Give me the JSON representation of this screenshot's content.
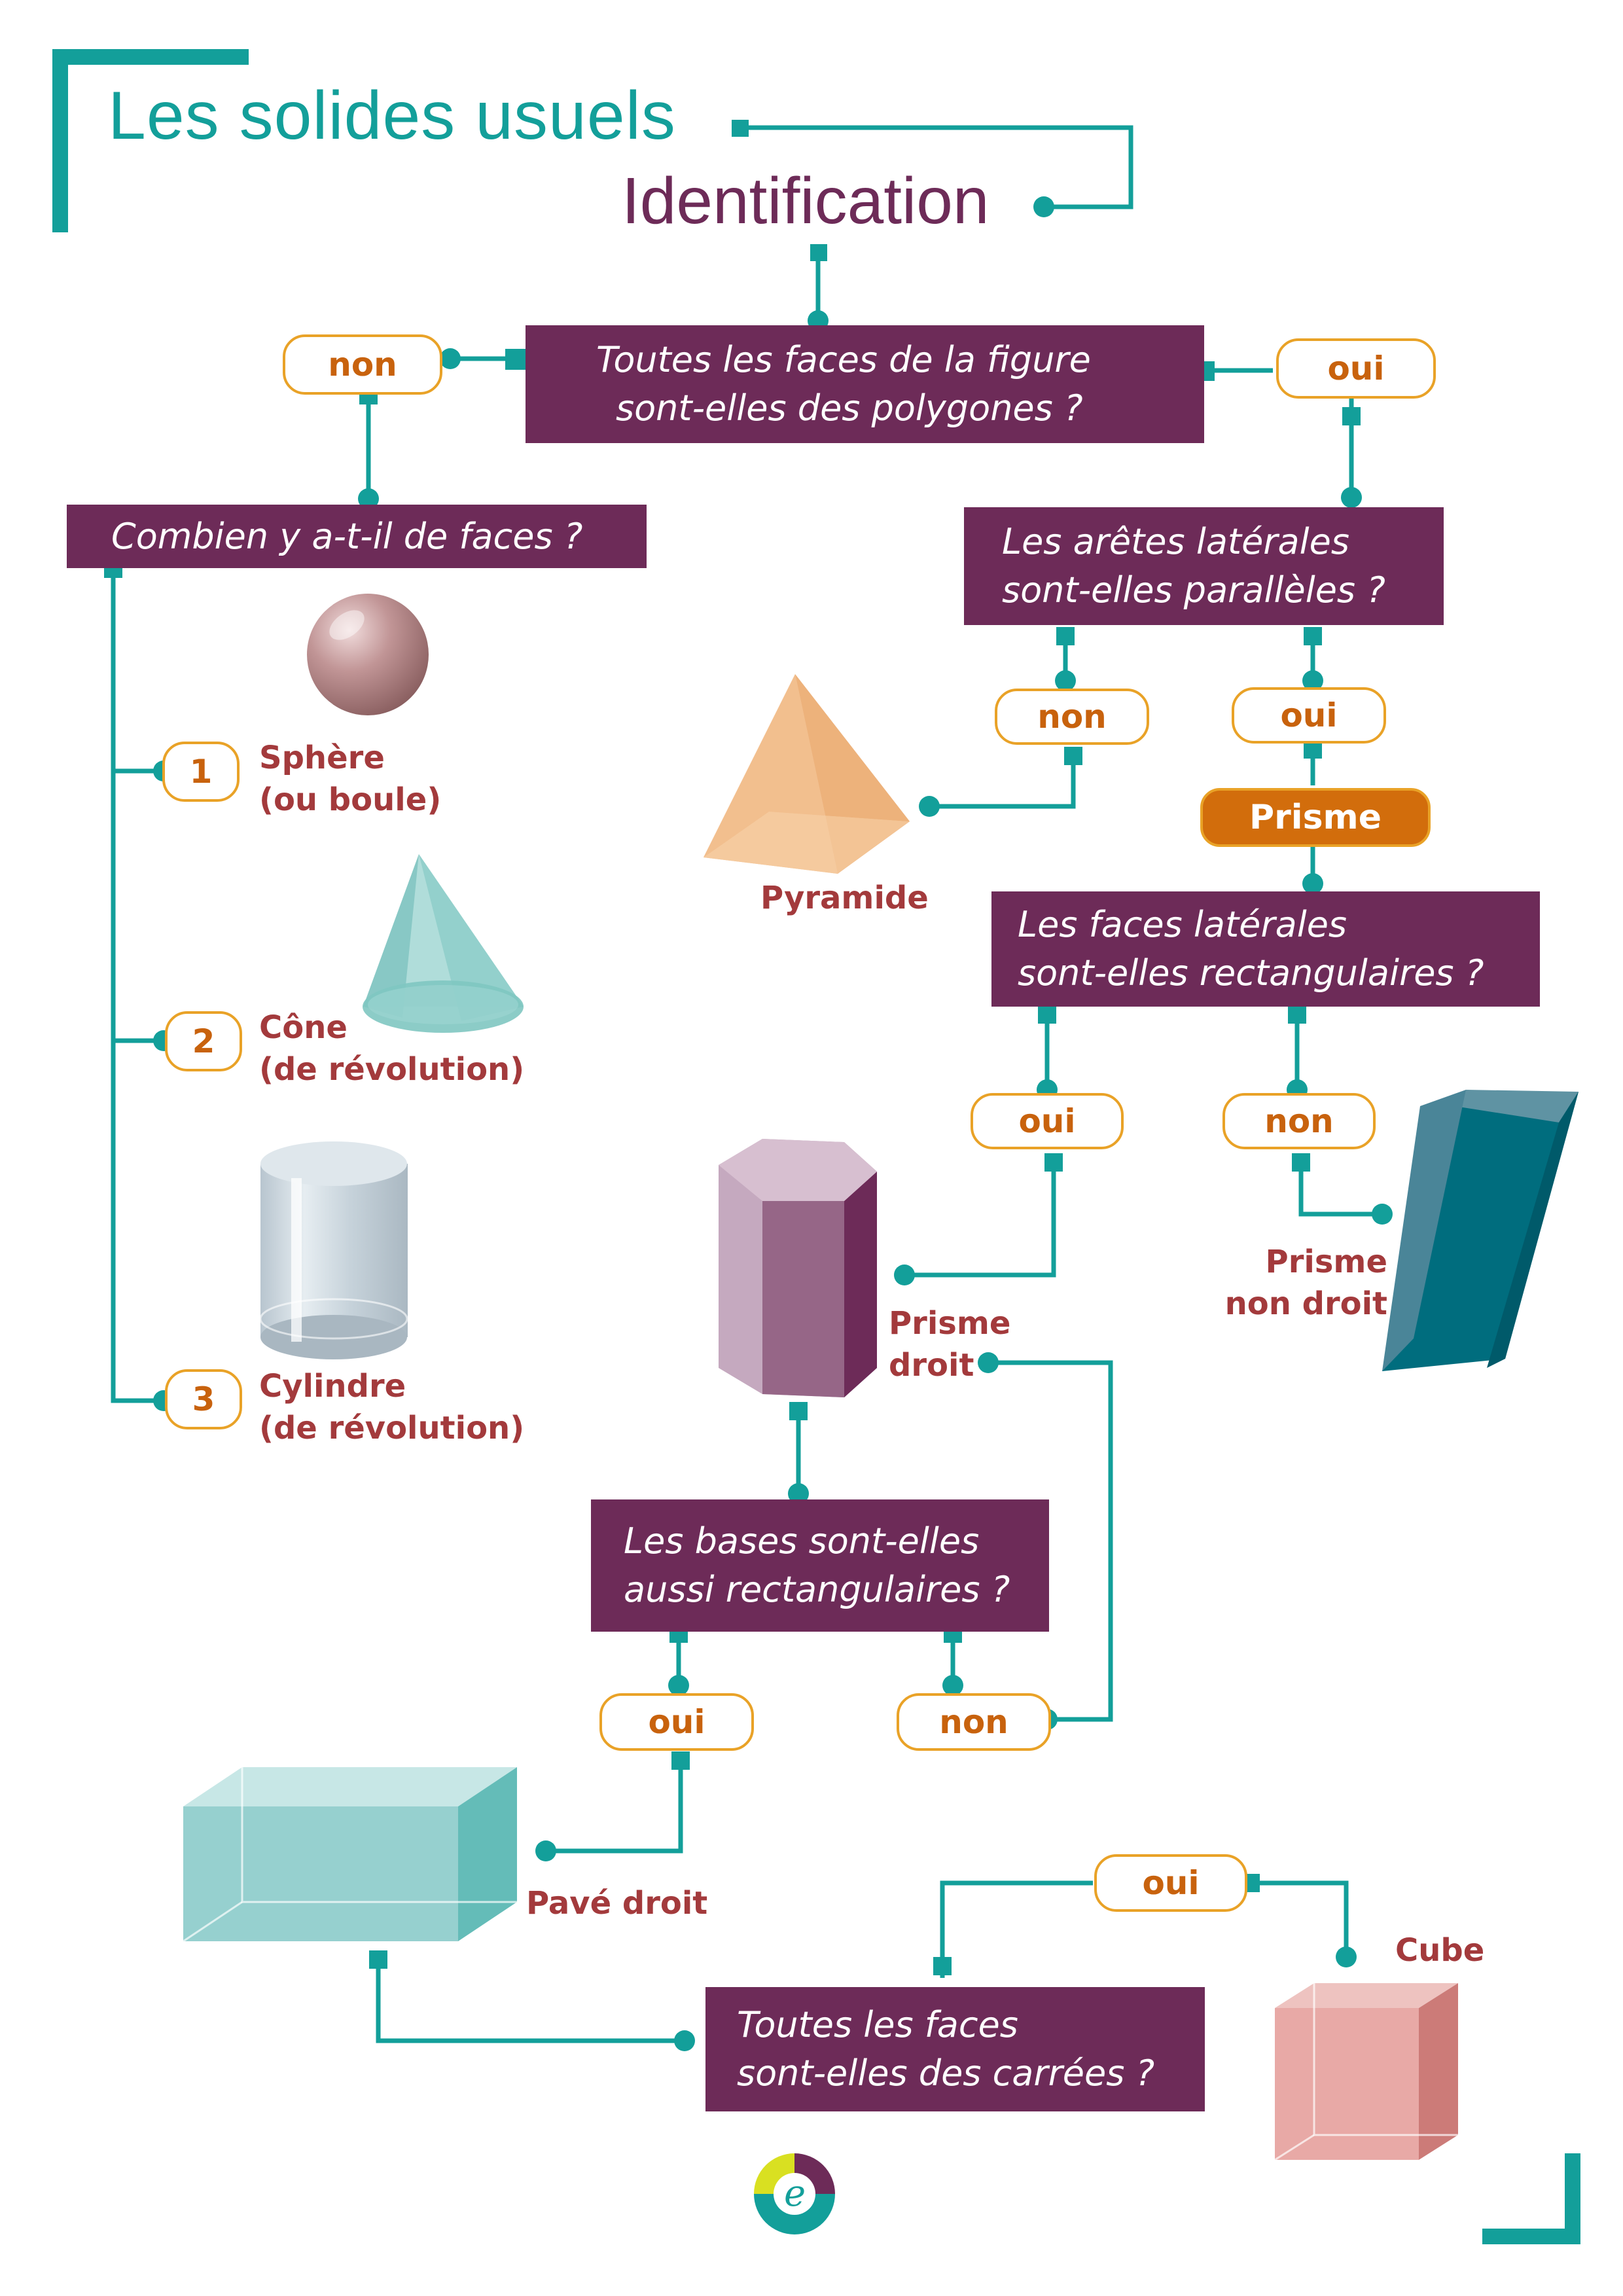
{
  "title": "Les solides usuels",
  "subtitle": "Identification",
  "questions": {
    "q1": [
      "Toutes les faces de la figure",
      "sont-elles des polygones ?"
    ],
    "q2": [
      "Combien y a-t-il de faces ?"
    ],
    "q3": [
      "Les arêtes latérales",
      "sont-elles parallèles ?"
    ],
    "q4": [
      "Les faces latérales",
      "sont-elles rectangulaires ?"
    ],
    "q5": [
      "Les bases sont-elles",
      "aussi rectangulaires ?"
    ],
    "q6": [
      "Toutes les faces",
      "sont-elles des carrées ?"
    ]
  },
  "answers": {
    "q1_non": "non",
    "q1_oui": "oui",
    "q3_non": "non",
    "q3_oui": "oui",
    "q4_oui": "oui",
    "q4_non": "non",
    "q5_oui": "oui",
    "q5_non": "non",
    "q6_oui": "oui"
  },
  "face_counts": {
    "one": "1",
    "two": "2",
    "three": "3"
  },
  "prisme_badge": "Prisme",
  "solids": {
    "sphere": [
      "Sphère",
      "(ou boule)"
    ],
    "cone": [
      "Cône",
      "(de révolution)"
    ],
    "cylinder": [
      "Cylindre",
      "(de révolution)"
    ],
    "pyramid": [
      "Pyramide"
    ],
    "right_prism": [
      "Prisme",
      "droit"
    ],
    "oblique_prism": [
      "Prisme",
      "non droit"
    ],
    "cuboid": [
      "Pavé droit"
    ],
    "cube": [
      "Cube"
    ]
  },
  "colors": {
    "teal": "#139f9a",
    "purple": "#6d2b58",
    "orange": "#e9a227",
    "label_red": "#a33a3c"
  }
}
